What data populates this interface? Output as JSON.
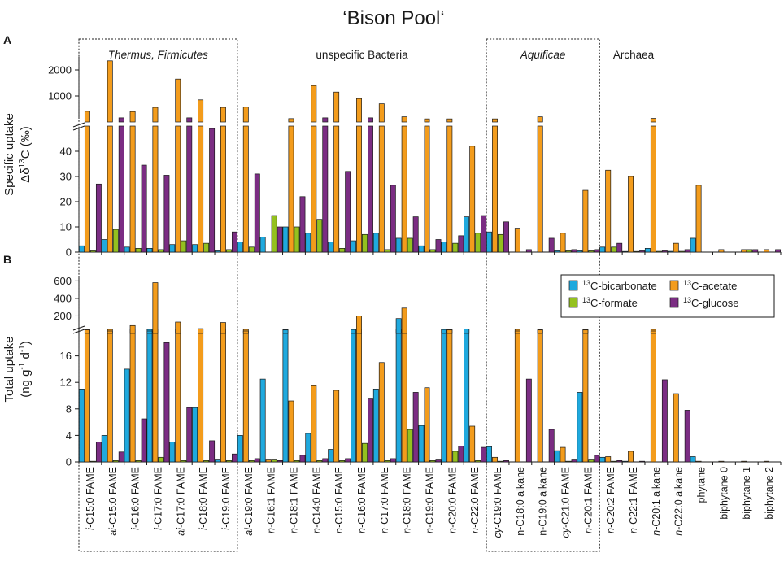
{
  "chart_data": {
    "type": "bar",
    "title": "‘Bison Pool‘",
    "series": [
      {
        "name": "13C-bicarbonate",
        "color": "#1fa9de"
      },
      {
        "name": "13C-acetate",
        "color": "#f39c1c"
      },
      {
        "name": "13C-formate",
        "color": "#94c11f"
      },
      {
        "name": "13C-glucose",
        "color": "#7b2d83"
      }
    ],
    "groups": [
      {
        "label": "Thermus, Firmicutes",
        "italic": true,
        "boxed": true,
        "from": 0,
        "to": 6
      },
      {
        "label": "unspecific Bacteria",
        "italic": false,
        "boxed": false,
        "from": 7,
        "to": 17
      },
      {
        "label": "Aquificae",
        "italic": true,
        "boxed": true,
        "from": 18,
        "to": 22
      },
      {
        "label": "Archaea",
        "italic": false,
        "boxed": false,
        "from": 23,
        "to": 25
      }
    ],
    "categories": [
      {
        "pre": "i-",
        "name": "C15:0 FAME"
      },
      {
        "pre": "ai-",
        "name": "C15:0 FAME"
      },
      {
        "pre": "i-",
        "name": "C16:0 FAME"
      },
      {
        "pre": "i-",
        "name": "C17:0 FAME"
      },
      {
        "pre": "ai-",
        "name": "C17:0 FAME"
      },
      {
        "pre": "i-",
        "name": "C18:0 FAME"
      },
      {
        "pre": "i-",
        "name": "C19:0 FAME"
      },
      {
        "pre": "ai-",
        "name": "C19:0 FAME"
      },
      {
        "pre": "n-",
        "name": "C16:1 FAME"
      },
      {
        "pre": "n-",
        "name": "C18:1 FAME"
      },
      {
        "pre": "n-",
        "name": "C14:0 FAME"
      },
      {
        "pre": "n-",
        "name": "C15:0 FAME"
      },
      {
        "pre": "n-",
        "name": "C16:0 FAME"
      },
      {
        "pre": "n-",
        "name": "C17:0 FAME"
      },
      {
        "pre": "n-",
        "name": "C18:0 FAME"
      },
      {
        "pre": "n-",
        "name": "C19:0 FAME"
      },
      {
        "pre": "n-",
        "name": "C20:0 FAME"
      },
      {
        "pre": "n-",
        "name": "C22:0 FAME"
      },
      {
        "pre": "cy-",
        "name": "C19:0 FAME"
      },
      {
        "pre": "",
        "name": "n-C18:0 alkane"
      },
      {
        "pre": "",
        "name": "n-C19:0 alkane"
      },
      {
        "pre": "cy-",
        "name": "C21:0 FAME"
      },
      {
        "pre": "n-",
        "name": "C20:1 FAME"
      },
      {
        "pre": "n-",
        "name": "C20:2 FAME"
      },
      {
        "pre": "n-",
        "name": "C22:1 FAME"
      },
      {
        "pre": "n-",
        "name": "C20:1 alkane"
      },
      {
        "pre": "n-",
        "name": "C22:0 alkane"
      },
      {
        "pre": "",
        "name": "phytane"
      },
      {
        "pre": "",
        "name": "biphytane 0"
      },
      {
        "pre": "",
        "name": "biphytane 1"
      },
      {
        "pre": "",
        "name": "biphytane 2"
      }
    ],
    "panels": [
      {
        "label": "A",
        "ylabel_line1": "Specific uptake",
        "ylabel_line2_pre": "Δδ",
        "ylabel_line2_sup": "13",
        "ylabel_line2_post": "C (‰)",
        "lower_range": [
          0,
          50
        ],
        "lower_ticks": [
          "0",
          "10",
          "20",
          "30",
          "40"
        ],
        "upper_range": [
          0,
          2500
        ],
        "upper_ticks": [
          {
            "v": 1000,
            "t": "1000"
          },
          {
            "v": 2000,
            "t": "2000"
          }
        ],
        "values": [
          [
            2.5,
            410,
            0.5,
            27
          ],
          [
            5,
            2350,
            9,
            160
          ],
          [
            2,
            400,
            1.5,
            34.5
          ],
          [
            1.5,
            560,
            1,
            30.5
          ],
          [
            3,
            1650,
            4.5,
            160
          ],
          [
            3,
            850,
            3.5,
            49
          ],
          [
            0.5,
            560,
            1,
            8
          ],
          [
            4,
            570,
            2,
            31
          ],
          [
            6,
            0,
            14.5,
            10
          ],
          [
            10,
            130,
            10,
            22
          ],
          [
            7.5,
            1400,
            13,
            160
          ],
          [
            4,
            1150,
            1.5,
            32
          ],
          [
            4.5,
            900,
            7,
            160
          ],
          [
            7.5,
            700,
            1,
            26.5
          ],
          [
            5.5,
            200,
            5.5,
            14
          ],
          [
            2.5,
            120,
            1,
            5
          ],
          [
            4,
            120,
            3.5,
            6.5
          ],
          [
            14,
            42,
            7.5,
            14.5
          ],
          [
            8,
            120,
            7,
            12
          ],
          [
            0,
            9.5,
            0,
            1
          ],
          [
            0,
            200,
            0,
            5.5
          ],
          [
            0.5,
            7.5,
            0.5,
            1
          ],
          [
            0.5,
            24.5,
            0.5,
            1
          ],
          [
            2,
            32.5,
            2,
            3.5
          ],
          [
            0.2,
            30,
            0.2,
            0.5
          ],
          [
            1.5,
            140,
            0.3,
            0.5
          ],
          [
            0.3,
            3.5,
            0.3,
            1
          ],
          [
            5.5,
            26.5,
            0,
            0
          ],
          [
            0,
            1,
            0,
            0
          ],
          [
            0,
            1,
            1,
            1
          ],
          [
            0,
            1,
            0,
            1
          ]
        ]
      },
      {
        "label": "B",
        "ylabel_line1": "Total uptake",
        "ylabel_line2_pre": "(ng g",
        "ylabel_line2_sup": "-1",
        "ylabel_line2_mid": " d",
        "ylabel_line2_sup2": "-1",
        "ylabel_line2_post": ")",
        "lower_range": [
          0,
          20
        ],
        "lower_ticks": [
          "0",
          "4",
          "8",
          "12",
          "16"
        ],
        "upper_range": [
          0,
          650
        ],
        "upper_ticks": [
          {
            "v": 200,
            "t": "200"
          },
          {
            "v": 400,
            "t": "400"
          },
          {
            "v": 600,
            "t": "600"
          }
        ],
        "values": [
          [
            11,
            40,
            0.1,
            3
          ],
          [
            4,
            25,
            0.2,
            1.5
          ],
          [
            14,
            90,
            0.2,
            6.5
          ],
          [
            25,
            580,
            0.7,
            18
          ],
          [
            3,
            130,
            0.2,
            8.2
          ],
          [
            8.2,
            55,
            0.2,
            3.2
          ],
          [
            0.3,
            125,
            0.2,
            1.2
          ],
          [
            4,
            25,
            0.2,
            0.5
          ],
          [
            12.5,
            0.3,
            0.3,
            0.2
          ],
          [
            40,
            9.2,
            0.2,
            1
          ],
          [
            4.3,
            11.5,
            0.2,
            0.5
          ],
          [
            1.9,
            10.8,
            0.2,
            0.5
          ],
          [
            45,
            200,
            2.8,
            9.5
          ],
          [
            11,
            15,
            0.2,
            0.5
          ],
          [
            170,
            290,
            4.9,
            10.5
          ],
          [
            5.5,
            11.2,
            0.2,
            0.3
          ],
          [
            45,
            40,
            1.6,
            2.4
          ],
          [
            50,
            5.4,
            0.2,
            2.2
          ],
          [
            2.3,
            0.7,
            0.1,
            0.2
          ],
          [
            0,
            25,
            0,
            12.5
          ],
          [
            0,
            40,
            0,
            4.9
          ],
          [
            1.7,
            2.2,
            0.1,
            0.3
          ],
          [
            10.5,
            40,
            0.3,
            1
          ],
          [
            0.7,
            0.8,
            0.1,
            0.2
          ],
          [
            0.1,
            1.6,
            0,
            0.1
          ],
          [
            0,
            25,
            0,
            12.4
          ],
          [
            0,
            10.3,
            0,
            7.8
          ],
          [
            0.8,
            0.1,
            0,
            0
          ],
          [
            0,
            0.1,
            0,
            0
          ],
          [
            0,
            0.1,
            0,
            0
          ],
          [
            0,
            0.1,
            0,
            0
          ]
        ]
      }
    ],
    "legend": [
      {
        "sup": "13",
        "rest": "C-bicarbonate",
        "series": 0
      },
      {
        "sup": "13",
        "rest": "C-acetate",
        "series": 1
      },
      {
        "sup": "13",
        "rest": "C-formate",
        "series": 2
      },
      {
        "sup": "13",
        "rest": "C-glucose",
        "series": 3
      }
    ],
    "legend_position": "top-right of panel B"
  }
}
